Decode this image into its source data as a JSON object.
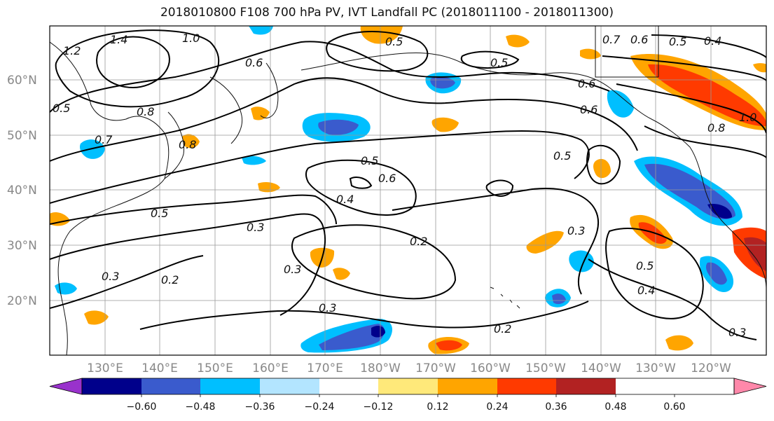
{
  "title": "2018010800 F108 700 hPa PV, IVT Landfall PC (2018011100 - 2018011300)",
  "map": {
    "lat_labels": [
      "60°N",
      "50°N",
      "40°N",
      "30°N",
      "20°N"
    ],
    "lon_labels": [
      "130°E",
      "140°E",
      "150°E",
      "160°E",
      "170°E",
      "180°W",
      "170°W",
      "160°W",
      "150°W",
      "140°W",
      "130°W",
      "120°W"
    ],
    "contour_labels": [
      "1.4",
      "1.0",
      "1.2",
      "0.6",
      "0.8",
      "0.7",
      "0.6",
      "0.5",
      "0.4",
      "0.5",
      "0.6",
      "0.6",
      "0.5",
      "0.8",
      "1.0",
      "0.7",
      "0.5",
      "0.6",
      "0.4",
      "0.5",
      "0.3",
      "0.2",
      "0.3",
      "0.3",
      "0.3",
      "0.2",
      "0.2",
      "0.3",
      "0.5",
      "0.4",
      "0.3",
      "0.5",
      "0.8",
      "0.5"
    ],
    "fill_colors": {
      "strong_positive": "#ff3a00",
      "positive": "#ffa500",
      "weak_positive": "#ffe97a",
      "weak_negative": "#b3e5ff",
      "negative": "#00bfff",
      "strong_negative": "#3a5bcd",
      "very_negative": "#00008b",
      "extreme_positive": "#b22222"
    }
  },
  "colorbar": {
    "colors": [
      "#9932cc",
      "#00008b",
      "#3a5bcd",
      "#00bfff",
      "#b3e5ff",
      "#ffffff",
      "#ffe97a",
      "#ffa500",
      "#ff3a00",
      "#b22222",
      "#ff88aa"
    ],
    "tick_labels": [
      "−0.60",
      "−0.48",
      "−0.36",
      "−0.24",
      "−0.12",
      "0.12",
      "0.24",
      "0.36",
      "0.48",
      "0.60"
    ]
  }
}
